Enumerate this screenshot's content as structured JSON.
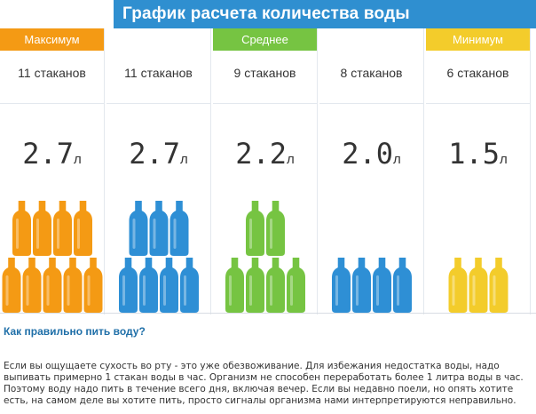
{
  "header": {
    "title": "График расчета количества воды"
  },
  "columns": [
    {
      "label": "Максимум",
      "glasses": "11 стаканов",
      "volume": "2.7",
      "unit": "л",
      "color": "#f49a14",
      "label_color": "#f49a14",
      "bottles_top": 4,
      "bottles_bottom": 5
    },
    {
      "label": "",
      "glasses": "11 стаканов",
      "volume": "2.7",
      "unit": "л",
      "color": "#2e8fd5",
      "label_color": "",
      "bottles_top": 3,
      "bottles_bottom": 4
    },
    {
      "label": "Среднее",
      "glasses": "9 стаканов",
      "volume": "2.2",
      "unit": "л",
      "color": "#76c442",
      "label_color": "#76c442",
      "bottles_top": 2,
      "bottles_bottom": 4
    },
    {
      "label": "",
      "glasses": "8 стаканов",
      "volume": "2.0",
      "unit": "л",
      "color": "#2e8fd5",
      "label_color": "",
      "bottles_top": 0,
      "bottles_bottom": 4
    },
    {
      "label": "Минимум",
      "glasses": "6 стаканов",
      "volume": "1.5",
      "unit": "л",
      "color": "#f3cc2b",
      "label_color": "#f3cc2b",
      "bottles_top": 0,
      "bottles_bottom": 3
    }
  ],
  "article": {
    "question": "Как правильно пить воду?",
    "text": "Если вы ощущаете сухость во рту - это уже обезвоживание. Для избежания недостатка воды, надо выпивать примерно 1 стакан воды в час. Организм не способен переработать более 1 литра воды в час. Поэтому воду надо пить в течение всего дня, включая вечер. Если вы недавно поели, но опять хотите есть, на самом деле вы хотите пить, просто сигналы организма нами интерпретируются неправильно."
  }
}
